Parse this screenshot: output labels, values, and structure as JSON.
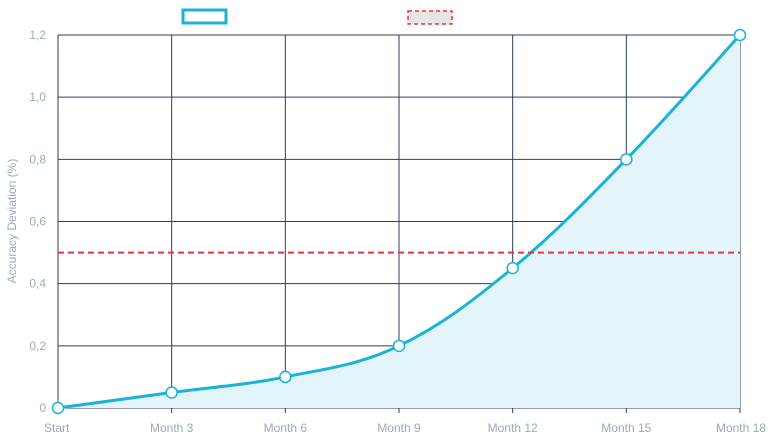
{
  "chart_data": {
    "type": "line",
    "title": "",
    "xlabel": "",
    "ylabel": "Accuracy Deviation (%)",
    "categories": [
      "Start",
      "Month 3",
      "Month 6",
      "Month 9",
      "Month 12",
      "Month 15",
      "Month 18"
    ],
    "yticks": [
      "0",
      "0,2",
      "0,4",
      "0,6",
      "0,8",
      "1,0",
      "1,2"
    ],
    "ylim": [
      0,
      1.2
    ],
    "grid": true,
    "legend_position": "top",
    "series": [
      {
        "values": [
          0,
          0.05,
          0.1,
          0.2,
          0.45,
          0.8,
          1.2
        ],
        "color": "#1ab3d6",
        "fill": "#e3f5fb",
        "style": "solid-area-with-markers"
      },
      {
        "values": [
          0.5,
          0.5,
          0.5,
          0.5,
          0.5,
          0.5,
          0.5
        ],
        "color": "#e8343e",
        "style": "dashed"
      }
    ]
  }
}
